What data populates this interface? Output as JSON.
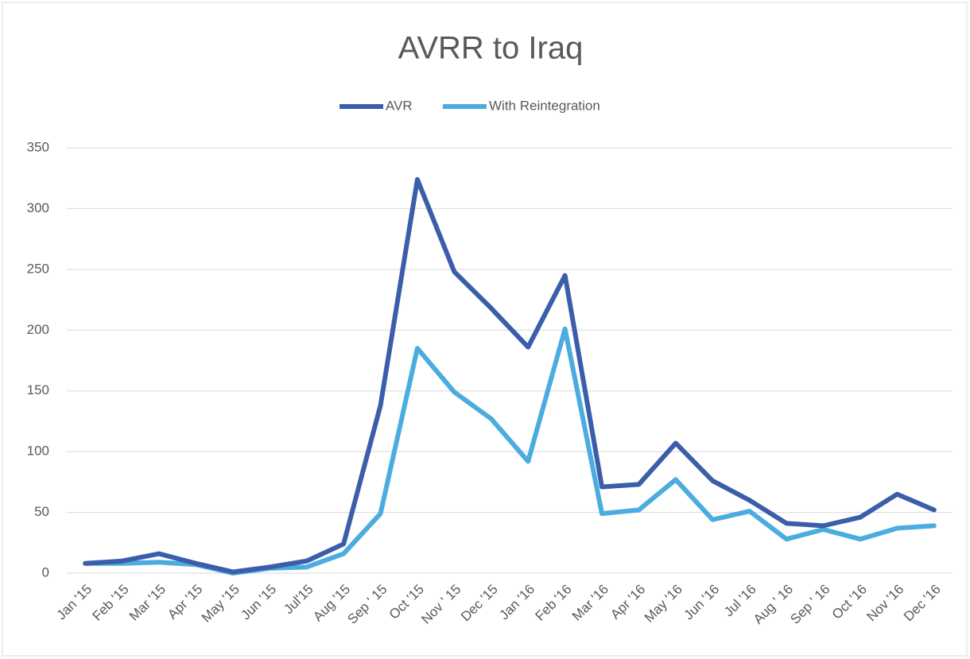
{
  "chart_data": {
    "type": "line",
    "title": "AVRR to Iraq",
    "categories": [
      "Jan '15",
      "Feb '15",
      "Mar '15",
      "Apr '15",
      "May '15",
      "Jun '15",
      "Jul'15",
      "Aug '15",
      "Sep ' 15",
      "Oct '15",
      "Nov ' 15",
      "Dec '15",
      "Jan '16",
      "Feb '16",
      "Mar '16",
      "Apr '16",
      "May '16",
      "Jun '16",
      "Jul '16",
      "Aug ' 16",
      "Sep ' 16",
      "Oct '16",
      "Nov '16",
      "Dec '16"
    ],
    "series": [
      {
        "name": "AVR",
        "color": "#3b5eab",
        "values": [
          8,
          10,
          16,
          8,
          1,
          5,
          10,
          24,
          138,
          324,
          248,
          218,
          186,
          245,
          71,
          73,
          107,
          76,
          60,
          41,
          39,
          46,
          65,
          52
        ]
      },
      {
        "name": "With Reintegration",
        "color": "#4bacdf",
        "values": [
          8,
          8,
          9,
          7,
          0,
          4,
          5,
          16,
          49,
          185,
          149,
          127,
          92,
          201,
          49,
          52,
          77,
          44,
          51,
          28,
          36,
          28,
          37,
          39
        ]
      }
    ],
    "ylim": [
      0,
      350
    ],
    "yticks": [
      0,
      50,
      100,
      150,
      200,
      250,
      300,
      350
    ],
    "grid": true,
    "legend": "top"
  }
}
